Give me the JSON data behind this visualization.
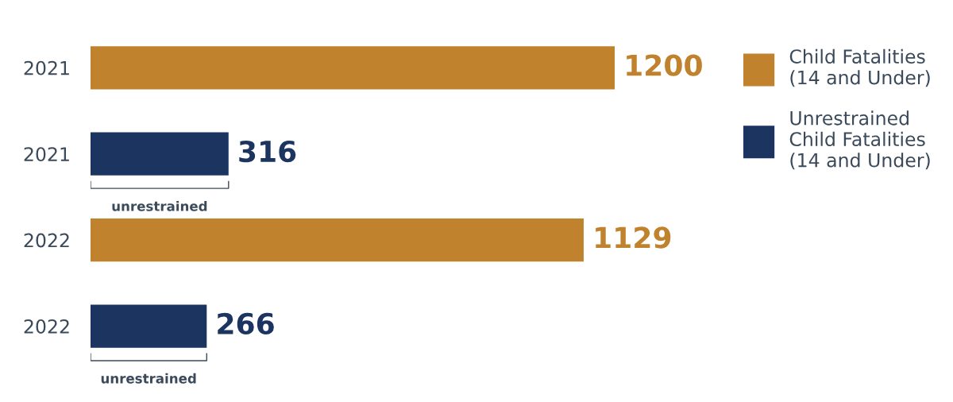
{
  "chart_data": {
    "type": "bar",
    "orientation": "horizontal",
    "categories": [
      "2021",
      "2021",
      "2022",
      "2022"
    ],
    "series": [
      {
        "name": "Child Fatalities\n(14 and Under)",
        "color": "#c0822d",
        "values": [
          1200,
          null,
          1129,
          null
        ]
      },
      {
        "name": "Unrestrained\nChild Fatalities\n(14 and Under)",
        "color": "#1b3560",
        "values": [
          null,
          316,
          null,
          266
        ]
      }
    ],
    "data_labels": true,
    "legend": "top right",
    "grid": false,
    "tick_labels": "y",
    "annotations": [
      "unrestrained",
      "unrestrained"
    ]
  }
}
